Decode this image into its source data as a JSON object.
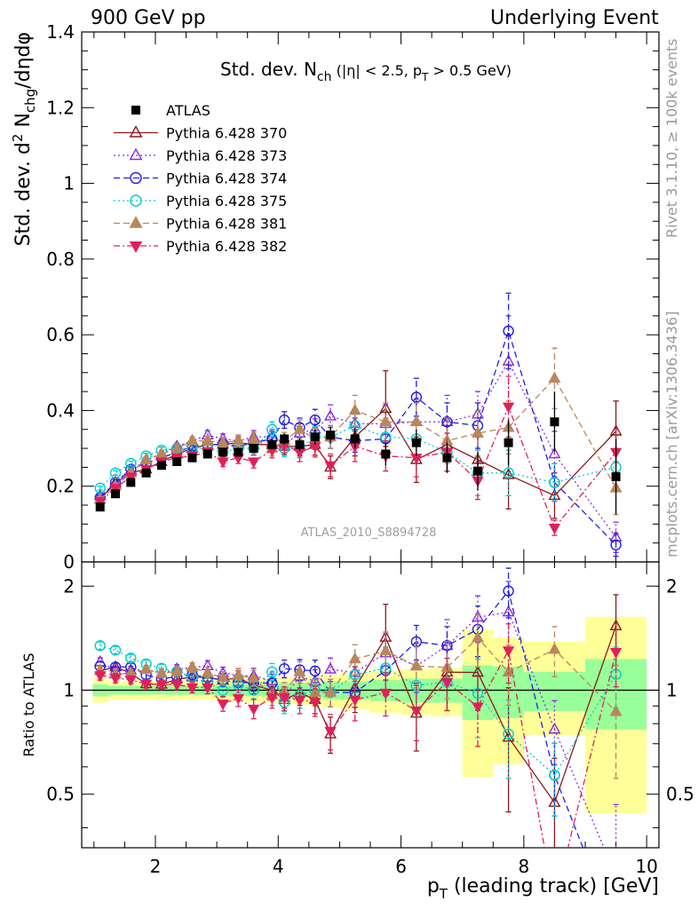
{
  "header": {
    "left": "900 GeV pp",
    "right": "Underlying Event"
  },
  "side_labels": {
    "rivet": "Rivet 3.1.10, ≥ 100k events",
    "mcplots": "mcplots.cern.ch [arXiv:1306.3436]"
  },
  "watermark": "ATLAS_2010_S8894728",
  "colors": {
    "atlas": "#000000",
    "p370": "#8b1a1a",
    "p373": "#8a2be2",
    "p374": "#1f1fe6",
    "p375": "#00cdcd",
    "p381": "#b8875a",
    "p382": "#e0205a",
    "band_yellow": "#ffff99",
    "band_green": "#99ff99"
  },
  "chart_data": {
    "type": "scatter",
    "title": {
      "main": "Std. dev. N",
      "sub": "ch",
      "cuts": "(|η| < 2.5, p",
      "cuts_sub": "T",
      "cuts_end": " > 0.5 GeV)"
    },
    "ylabel": "Std. dev. d² N_chg/dηdφ",
    "xlabel": "p_T (leading track) [GeV]",
    "ratio_ylabel": "Ratio to ATLAS",
    "xlim": [
      0.8,
      10.2
    ],
    "ylim": [
      0,
      1.4
    ],
    "ratio_ylim": [
      0.35,
      2.35
    ],
    "x_ticks": [
      2,
      4,
      6,
      8,
      10
    ],
    "y_ticks": [
      "0",
      "0.2",
      "0.4",
      "0.6",
      "0.8",
      "1",
      "1.2",
      "1.4"
    ],
    "ratio_ticks": [
      "0.5",
      "1",
      "2"
    ],
    "legend_position": "top-left",
    "x": [
      1.1,
      1.35,
      1.6,
      1.85,
      2.1,
      2.35,
      2.6,
      2.85,
      3.1,
      3.35,
      3.6,
      3.9,
      4.1,
      4.35,
      4.6,
      4.85,
      5.25,
      5.75,
      6.25,
      6.75,
      7.25,
      7.75,
      8.5,
      9.5
    ],
    "series": [
      {
        "name": "ATLAS",
        "marker": "square-filled",
        "values": [
          0.145,
          0.18,
          0.21,
          0.235,
          0.255,
          0.265,
          0.275,
          0.285,
          0.29,
          0.29,
          0.3,
          0.31,
          0.325,
          0.31,
          0.33,
          0.335,
          0.325,
          0.285,
          0.315,
          0.275,
          0.24,
          0.315,
          0.37,
          0.225
        ],
        "errors": [
          0.004,
          0.004,
          0.005,
          0.005,
          0.006,
          0.006,
          0.007,
          0.008,
          0.009,
          0.01,
          0.012,
          0.013,
          0.015,
          0.017,
          0.02,
          0.022,
          0.025,
          0.03,
          0.035,
          0.04,
          0.05,
          0.06,
          0.08,
          0.1
        ]
      },
      {
        "name": "Pythia 6.428 370",
        "marker": "triangle-open",
        "line": "solid",
        "values": [
          0.165,
          0.21,
          0.235,
          0.245,
          0.265,
          0.285,
          0.3,
          0.31,
          0.31,
          0.315,
          0.31,
          0.31,
          0.305,
          0.305,
          0.31,
          0.25,
          0.33,
          0.405,
          0.27,
          0.31,
          0.27,
          0.23,
          0.175,
          0.345
        ],
        "errors": [
          0.005,
          0.006,
          0.006,
          0.007,
          0.008,
          0.009,
          0.01,
          0.012,
          0.013,
          0.015,
          0.017,
          0.02,
          0.022,
          0.025,
          0.028,
          0.03,
          0.05,
          0.1,
          0.06,
          0.07,
          0.06,
          0.09,
          0.06,
          0.08
        ]
      },
      {
        "name": "Pythia 6.428 373",
        "marker": "triangle-open",
        "line": "dotted",
        "values": [
          0.175,
          0.205,
          0.24,
          0.27,
          0.285,
          0.305,
          0.32,
          0.335,
          0.325,
          0.32,
          0.33,
          0.33,
          0.31,
          0.34,
          0.35,
          0.385,
          0.365,
          0.365,
          0.37,
          0.37,
          0.39,
          0.53,
          0.285,
          0.065
        ],
        "errors": [
          0.005,
          0.006,
          0.006,
          0.007,
          0.008,
          0.009,
          0.01,
          0.012,
          0.013,
          0.015,
          0.017,
          0.02,
          0.022,
          0.025,
          0.028,
          0.03,
          0.03,
          0.05,
          0.06,
          0.07,
          0.06,
          0.12,
          0.06,
          0.04
        ]
      },
      {
        "name": "Pythia 6.428 374",
        "marker": "circle-open",
        "line": "dashed",
        "values": [
          0.17,
          0.21,
          0.245,
          0.26,
          0.275,
          0.29,
          0.305,
          0.31,
          0.31,
          0.305,
          0.315,
          0.325,
          0.375,
          0.355,
          0.375,
          0.33,
          0.32,
          0.325,
          0.435,
          0.37,
          0.36,
          0.61,
          0.21,
          0.045
        ],
        "errors": [
          0.005,
          0.006,
          0.006,
          0.007,
          0.008,
          0.009,
          0.01,
          0.012,
          0.013,
          0.015,
          0.017,
          0.02,
          0.022,
          0.025,
          0.028,
          0.03,
          0.03,
          0.05,
          0.05,
          0.05,
          0.06,
          0.1,
          0.05,
          0.03
        ]
      },
      {
        "name": "Pythia 6.428 375",
        "marker": "circle-open",
        "line": "dotted",
        "values": [
          0.195,
          0.235,
          0.26,
          0.28,
          0.295,
          0.3,
          0.3,
          0.3,
          0.29,
          0.3,
          0.3,
          0.35,
          0.3,
          0.3,
          0.33,
          0.33,
          0.36,
          0.33,
          0.325,
          0.29,
          0.235,
          0.235,
          0.21,
          0.25
        ],
        "errors": [
          0.005,
          0.006,
          0.006,
          0.007,
          0.008,
          0.009,
          0.01,
          0.012,
          0.013,
          0.015,
          0.017,
          0.02,
          0.022,
          0.025,
          0.028,
          0.03,
          0.04,
          0.05,
          0.05,
          0.05,
          0.06,
          0.06,
          0.05,
          0.05
        ]
      },
      {
        "name": "Pythia 6.428 381",
        "marker": "triangle-filled",
        "line": "dashed",
        "values": [
          0.165,
          0.2,
          0.235,
          0.27,
          0.285,
          0.3,
          0.32,
          0.32,
          0.315,
          0.32,
          0.325,
          0.3,
          0.32,
          0.35,
          0.325,
          0.33,
          0.4,
          0.37,
          0.37,
          0.32,
          0.34,
          0.355,
          0.485,
          0.195
        ],
        "errors": [
          0.005,
          0.006,
          0.006,
          0.007,
          0.008,
          0.009,
          0.01,
          0.012,
          0.013,
          0.015,
          0.017,
          0.02,
          0.022,
          0.025,
          0.028,
          0.03,
          0.04,
          0.05,
          0.05,
          0.06,
          0.06,
          0.07,
          0.08,
          0.07
        ]
      },
      {
        "name": "Pythia 6.428 382",
        "marker": "triangle-down-filled",
        "line": "dashdot",
        "values": [
          0.16,
          0.195,
          0.225,
          0.245,
          0.265,
          0.275,
          0.28,
          0.29,
          0.265,
          0.275,
          0.265,
          0.295,
          0.31,
          0.29,
          0.305,
          0.255,
          0.305,
          0.28,
          0.275,
          0.29,
          0.215,
          0.41,
          0.09,
          0.29
        ],
        "errors": [
          0.005,
          0.006,
          0.006,
          0.007,
          0.008,
          0.009,
          0.01,
          0.012,
          0.013,
          0.015,
          0.017,
          0.02,
          0.022,
          0.025,
          0.028,
          0.03,
          0.04,
          0.04,
          0.05,
          0.05,
          0.05,
          0.08,
          0.02,
          0.06
        ]
      }
    ],
    "ratio_band": {
      "x_edges": [
        0.98,
        1.225,
        1.475,
        1.725,
        1.975,
        2.225,
        2.475,
        2.725,
        2.975,
        3.225,
        3.475,
        3.75,
        4.0,
        4.225,
        4.475,
        4.725,
        5.0,
        5.5,
        6.0,
        6.5,
        7.0,
        7.5,
        8.0,
        9.0,
        10.0
      ],
      "yellow_lo": [
        0.92,
        0.94,
        0.94,
        0.94,
        0.94,
        0.94,
        0.94,
        0.94,
        0.93,
        0.93,
        0.92,
        0.92,
        0.91,
        0.91,
        0.9,
        0.89,
        0.88,
        0.86,
        0.85,
        0.84,
        0.56,
        0.61,
        0.74,
        0.44
      ],
      "yellow_hi": [
        1.08,
        1.06,
        1.06,
        1.06,
        1.06,
        1.06,
        1.06,
        1.06,
        1.07,
        1.07,
        1.08,
        1.08,
        1.09,
        1.09,
        1.1,
        1.11,
        1.12,
        1.14,
        1.15,
        1.16,
        1.5,
        1.42,
        1.38,
        1.63
      ],
      "green_lo": [
        0.96,
        0.97,
        0.97,
        0.97,
        0.97,
        0.97,
        0.97,
        0.97,
        0.96,
        0.96,
        0.96,
        0.96,
        0.95,
        0.95,
        0.95,
        0.94,
        0.94,
        0.93,
        0.92,
        0.92,
        0.82,
        0.83,
        0.87,
        0.77
      ],
      "green_hi": [
        1.04,
        1.03,
        1.03,
        1.03,
        1.03,
        1.03,
        1.03,
        1.03,
        1.04,
        1.04,
        1.04,
        1.04,
        1.05,
        1.05,
        1.05,
        1.06,
        1.06,
        1.07,
        1.08,
        1.08,
        1.18,
        1.17,
        1.13,
        1.23
      ]
    }
  }
}
